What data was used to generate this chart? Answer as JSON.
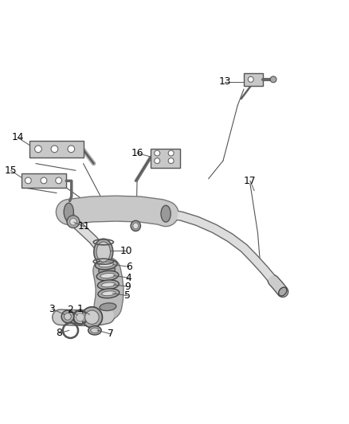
{
  "background_color": "#ffffff",
  "line_color": "#333333",
  "fig_width": 4.38,
  "fig_height": 5.33,
  "dpi": 100,
  "pipe_outer": "#666666",
  "pipe_inner": "#dddddd",
  "part_fill": "#cccccc",
  "part_edge": "#555555"
}
